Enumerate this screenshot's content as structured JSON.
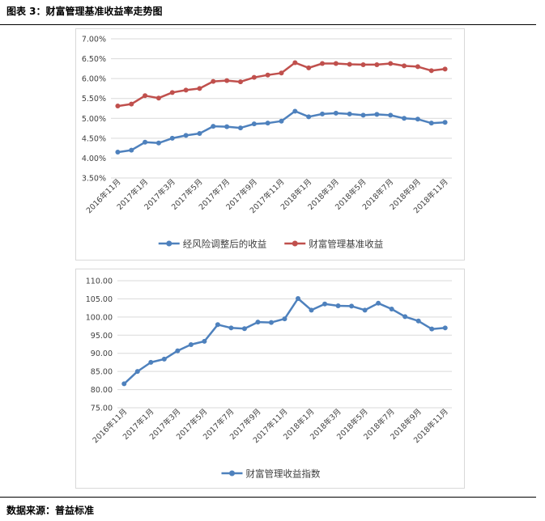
{
  "header": {
    "title": "图表 3：财富管理基准收益率走势图"
  },
  "footer": {
    "source": "数据来源：普益标准"
  },
  "chart_data": [
    {
      "type": "line",
      "categories": [
        "2016年11月",
        "2016年12月",
        "2017年1月",
        "2017年2月",
        "2017年3月",
        "2017年4月",
        "2017年5月",
        "2017年6月",
        "2017年7月",
        "2017年8月",
        "2017年9月",
        "2017年10月",
        "2017年11月",
        "2017年12月",
        "2018年1月",
        "2018年2月",
        "2018年3月",
        "2018年4月",
        "2018年5月",
        "2018年6月",
        "2018年7月",
        "2018年8月",
        "2018年9月",
        "2018年10月",
        "2018年11月"
      ],
      "tick_labels": [
        "2016年11月",
        "2017年1月",
        "2017年3月",
        "2017年5月",
        "2017年7月",
        "2017年9月",
        "2017年11月",
        "2018年1月",
        "2018年3月",
        "2018年5月",
        "2018年7月",
        "2018年9月",
        "2018年11月"
      ],
      "series": [
        {
          "name": "经风险调整后的收益",
          "color": "#4e81bd",
          "values": [
            4.15,
            4.2,
            4.4,
            4.38,
            4.5,
            4.57,
            4.62,
            4.8,
            4.79,
            4.76,
            4.86,
            4.88,
            4.93,
            5.18,
            5.04,
            5.11,
            5.13,
            5.11,
            5.08,
            5.1,
            5.08,
            5.0,
            4.98,
            4.88,
            4.9
          ]
        },
        {
          "name": "财富管理基准收益",
          "color": "#c0504d",
          "values": [
            5.31,
            5.36,
            5.57,
            5.51,
            5.65,
            5.71,
            5.75,
            5.93,
            5.95,
            5.92,
            6.03,
            6.09,
            6.14,
            6.4,
            6.27,
            6.38,
            6.38,
            6.36,
            6.35,
            6.35,
            6.38,
            6.32,
            6.3,
            6.2,
            6.24
          ]
        }
      ],
      "ylim": [
        3.5,
        7.0
      ],
      "yticks": [
        "7.00%",
        "6.50%",
        "6.00%",
        "5.50%",
        "5.00%",
        "4.50%",
        "4.00%",
        "3.50%"
      ],
      "grid": true,
      "legend": "bottom"
    },
    {
      "type": "line",
      "categories": [
        "2016年11月",
        "2016年12月",
        "2017年1月",
        "2017年2月",
        "2017年3月",
        "2017年4月",
        "2017年5月",
        "2017年6月",
        "2017年7月",
        "2017年8月",
        "2017年9月",
        "2017年10月",
        "2017年11月",
        "2017年12月",
        "2018年1月",
        "2018年2月",
        "2018年3月",
        "2018年4月",
        "2018年5月",
        "2018年6月",
        "2018年7月",
        "2018年8月",
        "2018年9月",
        "2018年10月",
        "2018年11月"
      ],
      "tick_labels": [
        "2016年11月",
        "2017年1月",
        "2017年3月",
        "2017年5月",
        "2017年7月",
        "2017年9月",
        "2017年11月",
        "2018年1月",
        "2018年3月",
        "2018年5月",
        "2018年7月",
        "2018年9月",
        "2018年11月"
      ],
      "series": [
        {
          "name": "财富管理收益指数",
          "color": "#4e81bd",
          "values": [
            81.6,
            85.0,
            87.5,
            88.4,
            90.7,
            92.4,
            93.3,
            97.9,
            97.0,
            96.8,
            98.6,
            98.5,
            99.5,
            105.1,
            101.9,
            103.6,
            103.1,
            103.0,
            101.9,
            103.8,
            102.2,
            100.1,
            98.9,
            96.7,
            97.0
          ]
        }
      ],
      "ylim": [
        75,
        110
      ],
      "yticks": [
        "110.00",
        "105.00",
        "100.00",
        "95.00",
        "90.00",
        "85.00",
        "80.00",
        "75.00"
      ],
      "grid": true,
      "legend": "bottom"
    }
  ]
}
